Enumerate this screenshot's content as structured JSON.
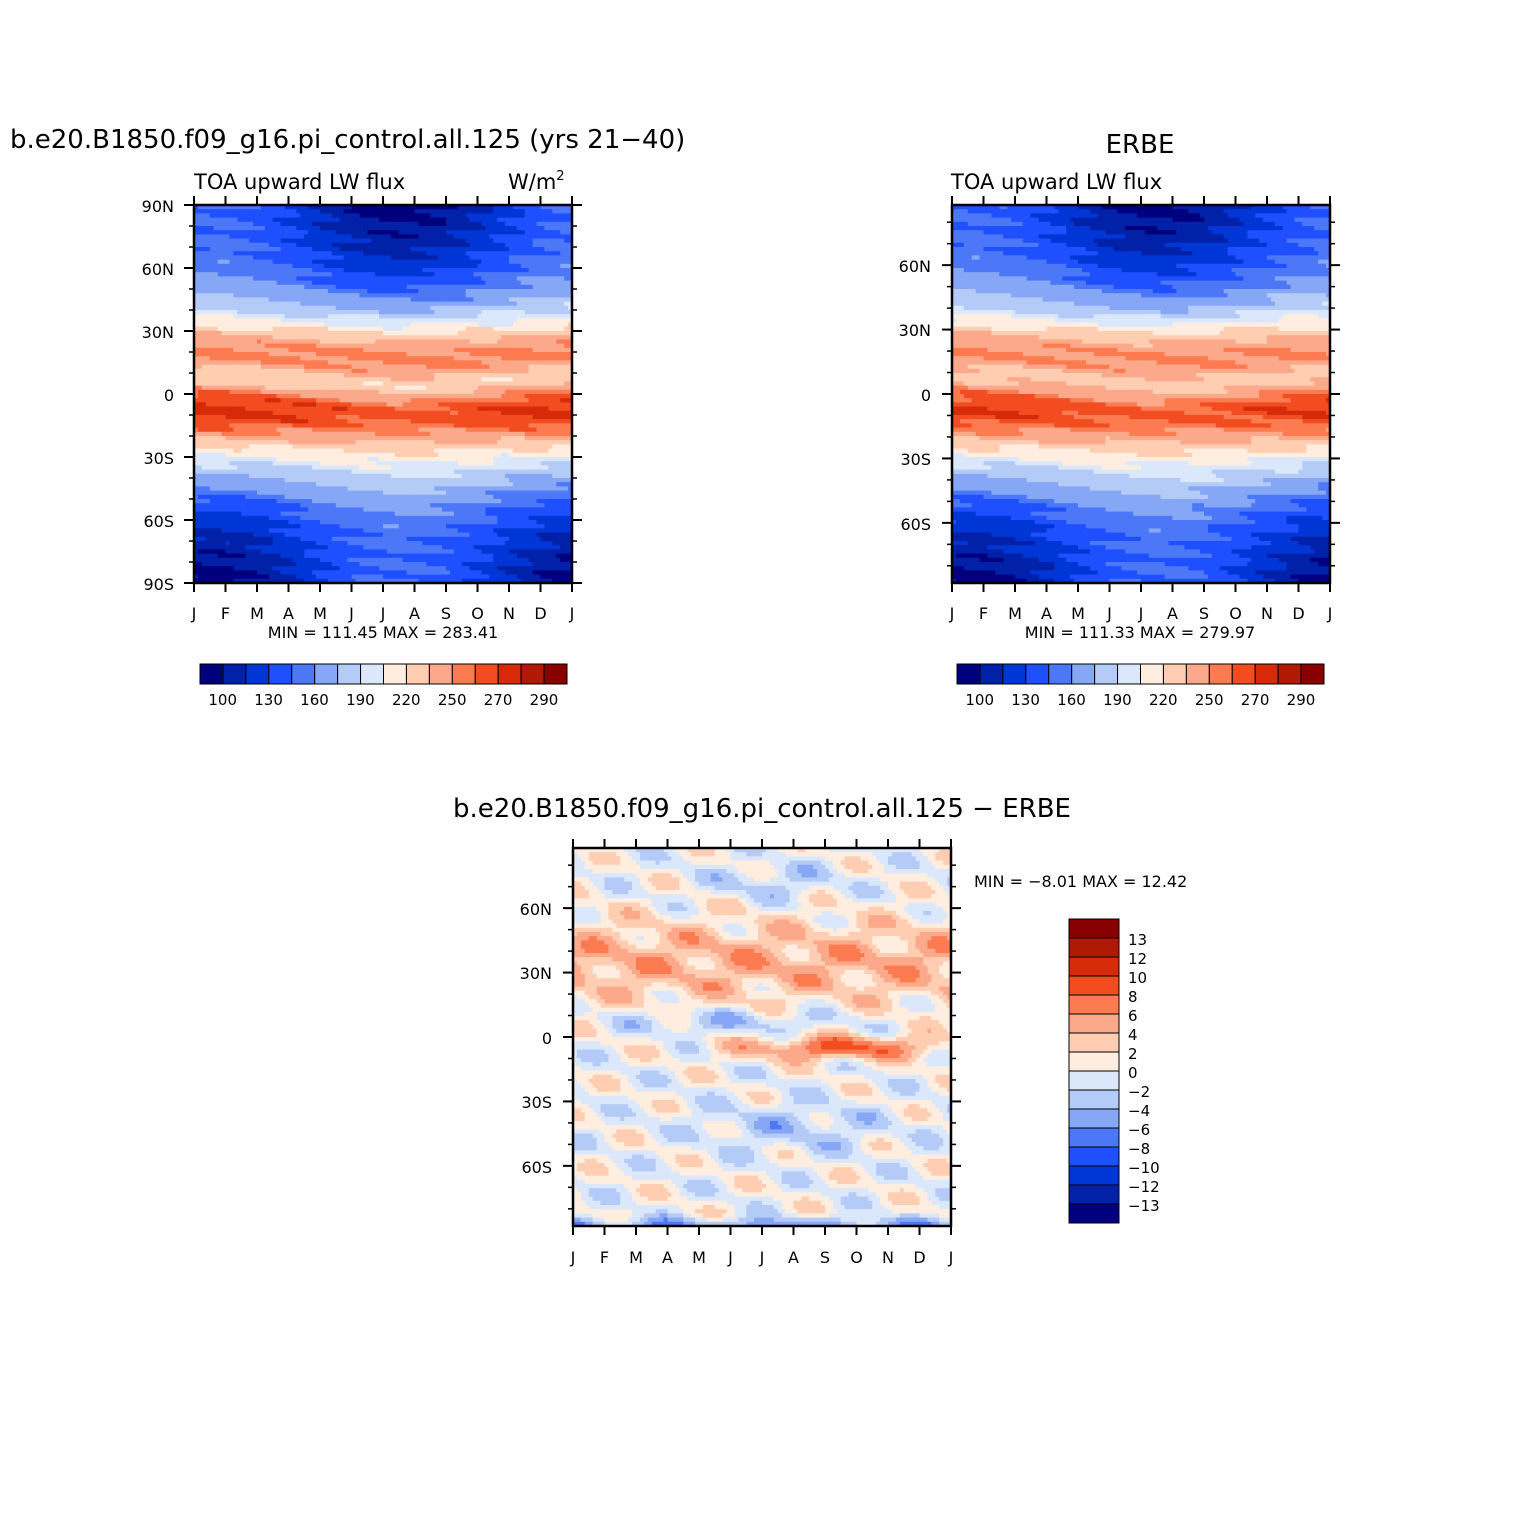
{
  "colors": {
    "level_fills": [
      "#00007f",
      "#0021a8",
      "#0036d6",
      "#1e50ff",
      "#4c78f7",
      "#86a7f5",
      "#b4caf7",
      "#dbe8fb",
      "#ffeee0",
      "#ffcdb1",
      "#fca98b",
      "#fc7b51",
      "#f24d20",
      "#d62a08",
      "#b01a05",
      "#880000"
    ]
  },
  "chart_data": [
    {
      "id": "model",
      "type": "heatmap",
      "title": "b.e20.B1850.f09_g16.pi_control.all.125 (yrs 21−40)",
      "subtitle_left": "TOA upward LW flux",
      "subtitle_right": "W/m",
      "subtitle_right_sup": "2",
      "x_tick_labels": [
        "J",
        "F",
        "M",
        "A",
        "M",
        "J",
        "J",
        "A",
        "S",
        "O",
        "N",
        "D",
        "J"
      ],
      "y_tick_labels": [
        "90N",
        "60N",
        "30N",
        "0",
        "30S",
        "60S",
        "90S"
      ],
      "y_tick_values": [
        90,
        60,
        30,
        0,
        -30,
        -60,
        -90
      ],
      "ylim": [
        -90,
        90
      ],
      "min_max_text": "MIN = 111.45 MAX = 283.41",
      "min": 111.45,
      "max": 283.41,
      "levels": [
        100,
        115,
        130,
        145,
        160,
        175,
        190,
        205,
        220,
        235,
        250,
        260,
        270,
        280,
        290
      ],
      "colorbar_labels": [
        "100",
        "130",
        "160",
        "190",
        "220",
        "250",
        "270",
        "290"
      ],
      "colorbar_label_levels": [
        100,
        130,
        160,
        190,
        220,
        250,
        270,
        290
      ]
    },
    {
      "id": "obs",
      "type": "heatmap",
      "title": "ERBE",
      "subtitle_left": "TOA upward LW flux",
      "x_tick_labels": [
        "J",
        "F",
        "M",
        "A",
        "M",
        "J",
        "J",
        "A",
        "S",
        "O",
        "N",
        "D",
        "J"
      ],
      "y_tick_labels": [
        "60N",
        "30N",
        "0",
        "30S",
        "60S"
      ],
      "y_tick_values": [
        60,
        30,
        0,
        -30,
        -60
      ],
      "ylim": [
        -88,
        88
      ],
      "min_max_text": "MIN = 111.33 MAX = 279.97",
      "min": 111.33,
      "max": 279.97,
      "levels": [
        100,
        115,
        130,
        145,
        160,
        175,
        190,
        205,
        220,
        235,
        250,
        260,
        270,
        280,
        290
      ],
      "colorbar_labels": [
        "100",
        "130",
        "160",
        "190",
        "220",
        "250",
        "270",
        "290"
      ],
      "colorbar_label_levels": [
        100,
        130,
        160,
        190,
        220,
        250,
        270,
        290
      ]
    },
    {
      "id": "diff",
      "type": "heatmap",
      "title": "b.e20.B1850.f09_g16.pi_control.all.125 − ERBE",
      "x_tick_labels": [
        "J",
        "F",
        "M",
        "A",
        "M",
        "J",
        "J",
        "A",
        "S",
        "O",
        "N",
        "D",
        "J"
      ],
      "y_tick_labels": [
        "60N",
        "30N",
        "0",
        "30S",
        "60S"
      ],
      "y_tick_values": [
        60,
        30,
        0,
        -30,
        -60
      ],
      "ylim": [
        -88,
        88
      ],
      "min_max_text": "MIN = −8.01 MAX = 12.42",
      "min": -8.01,
      "max": 12.42,
      "levels": [
        -13,
        -12,
        -10,
        -8,
        -6,
        -4,
        -2,
        0,
        2,
        4,
        6,
        8,
        10,
        12,
        13
      ],
      "colorbar_labels": [
        "13",
        "12",
        "10",
        "8",
        "6",
        "4",
        "2",
        "0",
        "−2",
        "−4",
        "−6",
        "−8",
        "−10",
        "−12",
        "−13"
      ]
    }
  ]
}
